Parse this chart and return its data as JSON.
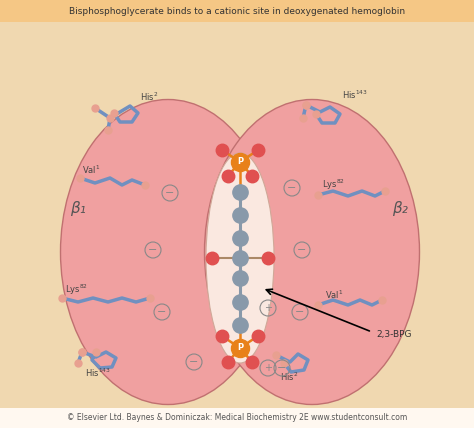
{
  "title": "Bisphosphoglycerate binds to a cationic site in deoxygenated hemoglobin",
  "footer": "© Elsevier Ltd. Baynes & Dominiczak: Medical Biochemistry 2E www.studentconsult.com",
  "bg_top_color": "#F5C785",
  "bg_main_color": "#F0D8B0",
  "left_lobe_color": "#F0A0A0",
  "right_lobe_color": "#F0A0A0",
  "orange_atom_color": "#E8811A",
  "red_atom_color": "#E05050",
  "gray_atom_color": "#8899AA",
  "blue_chain_color": "#7090C0",
  "salmon_color": "#E8A090",
  "beta1_label": "β₁",
  "beta2_label": "β₂",
  "bpg_label": "2,3-BPG"
}
